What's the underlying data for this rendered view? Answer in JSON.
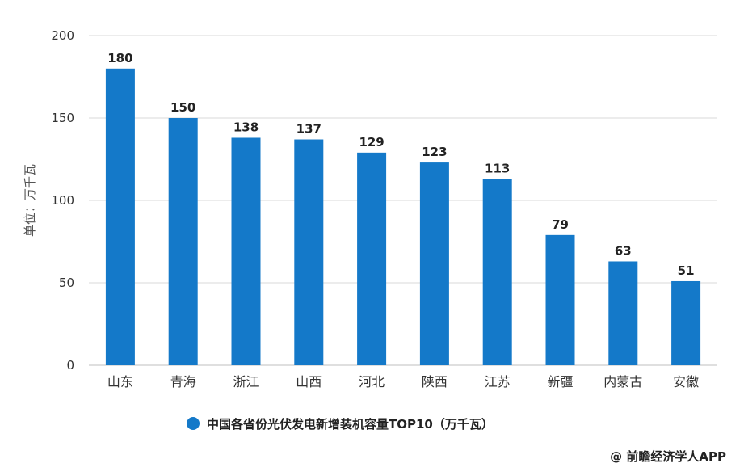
{
  "chart_data": {
    "type": "bar",
    "categories": [
      "山东",
      "青海",
      "浙江",
      "山西",
      "河北",
      "陕西",
      "江苏",
      "新疆",
      "内蒙古",
      "安徽"
    ],
    "values": [
      180,
      150,
      138,
      137,
      129,
      123,
      113,
      79,
      63,
      51
    ],
    "ylabel": "单位：万千瓦",
    "ylim": [
      0,
      200
    ],
    "yticks": [
      0,
      50,
      100,
      150,
      200
    ],
    "grid": true,
    "legend": {
      "position": "bottom",
      "entries": [
        "中国各省份光伏发电新增装机容量TOP10（万千瓦）"
      ]
    },
    "colors": {
      "bar": "#1479C9",
      "grid": "#D9D9D9",
      "axis_text": "#333333"
    }
  },
  "source_note": "@ 前瞻经济学人APP"
}
